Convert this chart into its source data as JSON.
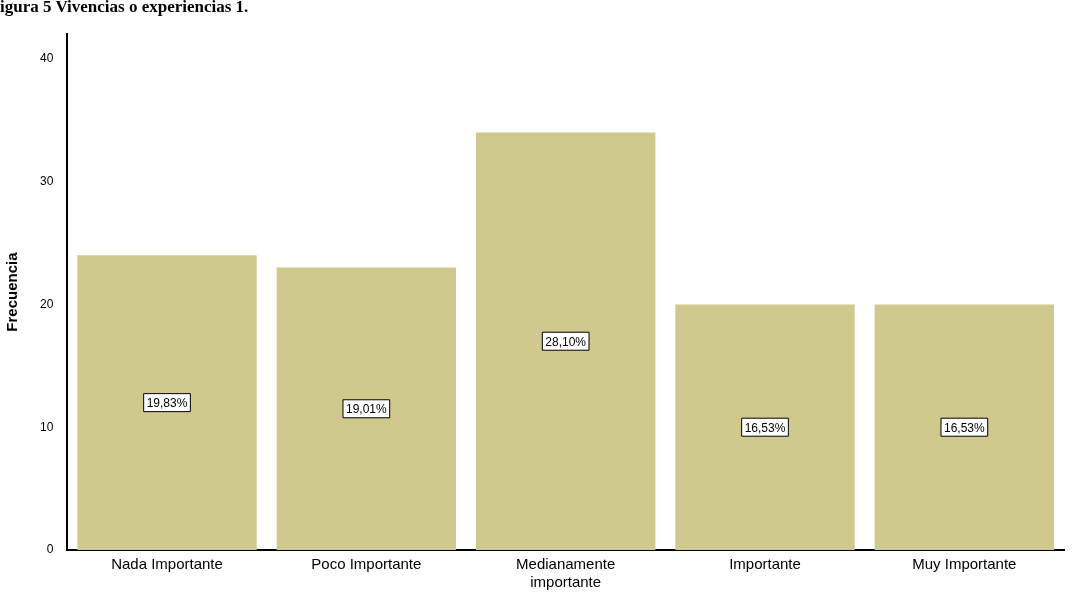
{
  "chart_data": {
    "type": "bar",
    "title": "igura 5 Vivencias o experiencias 1.",
    "ylabel": "Frecuencia",
    "categories": [
      "Nada Importante",
      "Poco Importante",
      "Medianamente importante",
      "Importante",
      "Muy Importante"
    ],
    "values": [
      24,
      23,
      34,
      20,
      20
    ],
    "annotations": [
      "19,83%",
      "19,01%",
      "28,10%",
      "16,53%",
      "16,53%"
    ],
    "color": "#d0c98e",
    "ylim": [
      0,
      42
    ],
    "yticks": [
      0,
      10,
      20,
      30,
      40
    ],
    "grid": false,
    "legend": false
  }
}
